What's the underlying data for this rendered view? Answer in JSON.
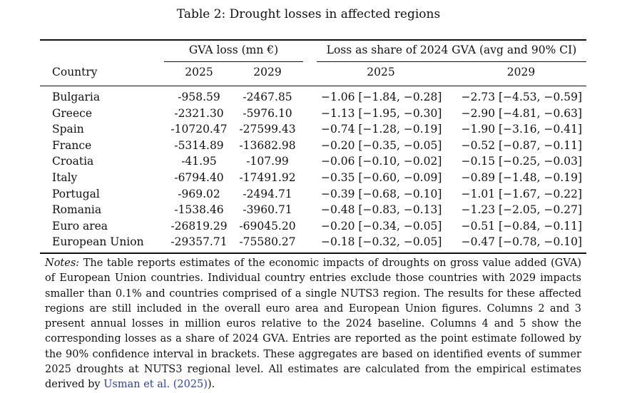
{
  "caption": "Table 2: Drought losses in affected regions",
  "header": {
    "group_gva": "GVA loss (mn €)",
    "group_share": "Loss as share of 2024 GVA (avg and 90% CI)",
    "country": "Country",
    "gva_2025": "2025",
    "gva_2029": "2029",
    "share_2025": "2025",
    "share_2029": "2029"
  },
  "rows": [
    {
      "country": "Bulgaria",
      "gva_2025": "-958.59",
      "gva_2029": "-2467.85",
      "share_2025": "−1.06 [−1.84, −0.28]",
      "share_2029": "−2.73 [−4.53, −0.59]"
    },
    {
      "country": "Greece",
      "gva_2025": "-2321.30",
      "gva_2029": "-5976.10",
      "share_2025": "−1.13 [−1.95, −0.30]",
      "share_2029": "−2.90 [−4.81, −0.63]"
    },
    {
      "country": "Spain",
      "gva_2025": "-10720.47",
      "gva_2029": "-27599.43",
      "share_2025": "−0.74 [−1.28, −0.19]",
      "share_2029": "−1.90 [−3.16, −0.41]"
    },
    {
      "country": "France",
      "gva_2025": "-5314.89",
      "gva_2029": "-13682.98",
      "share_2025": "−0.20 [−0.35, −0.05]",
      "share_2029": "−0.52 [−0.87, −0.11]"
    },
    {
      "country": "Croatia",
      "gva_2025": "-41.95",
      "gva_2029": "-107.99",
      "share_2025": "−0.06 [−0.10, −0.02]",
      "share_2029": "−0.15 [−0.25, −0.03]"
    },
    {
      "country": "Italy",
      "gva_2025": "-6794.40",
      "gva_2029": "-17491.92",
      "share_2025": "−0.35 [−0.60, −0.09]",
      "share_2029": "−0.89 [−1.48, −0.19]"
    },
    {
      "country": "Portugal",
      "gva_2025": "-969.02",
      "gva_2029": "-2494.71",
      "share_2025": "−0.39 [−0.68, −0.10]",
      "share_2029": "−1.01 [−1.67, −0.22]"
    },
    {
      "country": "Romania",
      "gva_2025": "-1538.46",
      "gva_2029": "-3960.71",
      "share_2025": "−0.48 [−0.83, −0.13]",
      "share_2029": "−1.23 [−2.05, −0.27]"
    },
    {
      "country": "Euro area",
      "gva_2025": "-26819.29",
      "gva_2029": "-69045.20",
      "share_2025": "−0.20 [−0.34, −0.05]",
      "share_2029": "−0.51 [−0.84, −0.11]"
    },
    {
      "country": "European Union",
      "gva_2025": "-29357.71",
      "gva_2029": "-75580.27",
      "share_2025": "−0.18 [−0.32, −0.05]",
      "share_2029": "−0.47 [−0.78, −0.10]"
    }
  ],
  "notes": {
    "label": "Notes:",
    "text": "The table reports estimates of the economic impacts of droughts on gross value added (GVA) of European Union countries. Individual country entries exclude those countries with 2029 impacts smaller than 0.1% and countries comprised of a single NUTS3 region. The results for these affected regions are still included in the overall euro area and European Union figures. Columns 2 and 3 present annual losses in million euros relative to the 2024 baseline. Columns 4 and 5 show the corresponding losses as a share of 2024 GVA. Entries are reported as the point estimate followed by the 90% confidence interval in brackets. These aggregates are based on identified events of summer 2025 droughts at NUTS3 regional level. All estimates are calculated from the empirical estimates derived by",
    "citation": "Usman et al. (2025)",
    "tail": ")."
  },
  "colors": {
    "text": "#111111",
    "citation": "#2b3fae"
  }
}
